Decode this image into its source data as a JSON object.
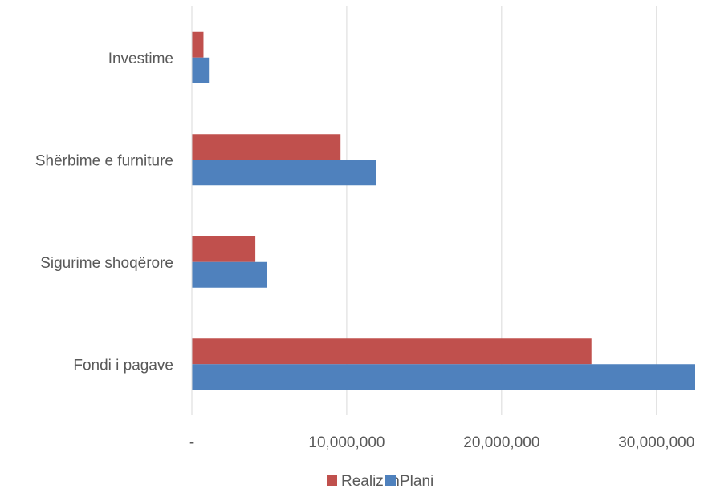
{
  "chart_data": {
    "type": "bar",
    "orientation": "horizontal",
    "categories": [
      "Investime",
      "Shërbime e furniture",
      "Sigurime shoqërore",
      "Fondi i pagave"
    ],
    "series": [
      {
        "name": "Realizimi",
        "color": "#c0504d",
        "values": [
          750000,
          9600000,
          4100000,
          25800000
        ]
      },
      {
        "name": "Plani",
        "color": "#4f81bd",
        "values": [
          1100000,
          11900000,
          4850000,
          32500000
        ]
      }
    ],
    "xlim": [
      0,
      32500000
    ],
    "x_ticks": [
      0,
      10000000,
      20000000,
      30000000
    ],
    "x_tick_labels": [
      "-",
      "10,000,000",
      "20,000,000",
      "30,000,000"
    ],
    "grid": "vertical",
    "legend_position": "bottom",
    "title": "",
    "xlabel": "",
    "ylabel": ""
  }
}
